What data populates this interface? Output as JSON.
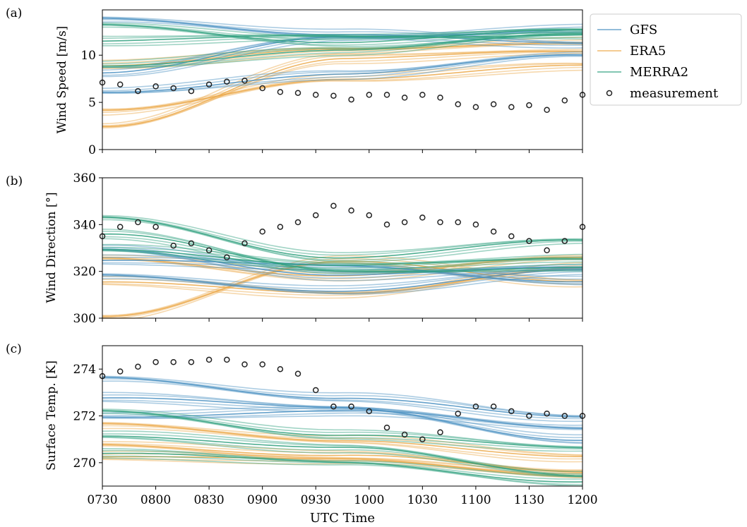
{
  "colors": {
    "GFS": "#4a90c2",
    "ERA5": "#eca94a",
    "MERRA2": "#2fa07e",
    "measurement": "#222222"
  },
  "chart_data": [
    {
      "type": "line",
      "panel_label": "(a)",
      "xlabel": "",
      "ylabel": "Wind Speed [m/s]",
      "xlim": [
        "0730",
        "1200"
      ],
      "ylim": [
        0,
        14.8
      ],
      "yticks": [
        0,
        5,
        10
      ],
      "xticks": [
        "0730",
        "0800",
        "0830",
        "0900",
        "0930",
        "1000",
        "1030",
        "1100",
        "1130",
        "1200"
      ],
      "ensembles": {
        "GFS": [
          {
            "y0": 13.8,
            "y1": 12.3,
            "y2": 11.1
          },
          {
            "y0": 6.2,
            "y1": 7.9,
            "y2": 10.1
          },
          {
            "y0": 8.2,
            "y1": 11.8,
            "y2": 12.8
          }
        ],
        "ERA5": [
          {
            "y0": 4.0,
            "y1": 7.6,
            "y2": 8.8
          },
          {
            "y0": 2.5,
            "y1": 9.6,
            "y2": 10.4
          },
          {
            "y0": 9.0,
            "y1": 10.5,
            "y2": 11.5
          }
        ],
        "MERRA2": [
          {
            "y0": 13.2,
            "y1": 11.4,
            "y2": 12.6
          },
          {
            "y0": 9.0,
            "y1": 10.4,
            "y2": 12.4
          },
          {
            "y0": 11.5,
            "y1": 12.0,
            "y2": 12.2
          }
        ]
      },
      "measurement": {
        "x": [
          "0730",
          "0740",
          "0750",
          "0800",
          "0810",
          "0820",
          "0830",
          "0840",
          "0850",
          "0900",
          "0910",
          "0920",
          "0930",
          "0940",
          "0950",
          "1000",
          "1010",
          "1020",
          "1030",
          "1040",
          "1050",
          "1100",
          "1110",
          "1120",
          "1130",
          "1140",
          "1150",
          "1200"
        ],
        "y": [
          7.1,
          6.9,
          6.2,
          6.7,
          6.5,
          6.2,
          6.9,
          7.2,
          7.3,
          6.5,
          6.1,
          6.0,
          5.8,
          5.7,
          5.3,
          5.8,
          5.8,
          5.5,
          5.8,
          5.5,
          4.8,
          4.5,
          4.8,
          4.5,
          4.7,
          4.2,
          5.2,
          5.8
        ]
      }
    },
    {
      "type": "line",
      "panel_label": "(b)",
      "xlabel": "",
      "ylabel": "Wind Direction [°]",
      "xlim": [
        "0730",
        "1200"
      ],
      "ylim": [
        300,
        360
      ],
      "yticks": [
        300,
        320,
        340,
        360
      ],
      "xticks": [
        "0730",
        "0800",
        "0830",
        "0900",
        "0930",
        "1000",
        "1030",
        "1100",
        "1130",
        "1200"
      ],
      "ensembles": {
        "GFS": [
          {
            "y0": 318,
            "y1": 312,
            "y2": 320
          },
          {
            "y0": 330,
            "y1": 318,
            "y2": 322
          },
          {
            "y0": 325,
            "y1": 322,
            "y2": 316
          }
        ],
        "ERA5": [
          {
            "y0": 300,
            "y1": 325,
            "y2": 315
          },
          {
            "y0": 326,
            "y1": 318,
            "y2": 326
          },
          {
            "y0": 316,
            "y1": 310,
            "y2": 322
          }
        ],
        "MERRA2": [
          {
            "y0": 343,
            "y1": 326,
            "y2": 333
          },
          {
            "y0": 330,
            "y1": 322,
            "y2": 326
          },
          {
            "y0": 336,
            "y1": 320,
            "y2": 322
          }
        ]
      },
      "measurement": {
        "x": [
          "0730",
          "0740",
          "0750",
          "0800",
          "0810",
          "0820",
          "0830",
          "0840",
          "0850",
          "0900",
          "0910",
          "0920",
          "0930",
          "0940",
          "0950",
          "1000",
          "1010",
          "1020",
          "1030",
          "1040",
          "1050",
          "1100",
          "1110",
          "1120",
          "1130",
          "1140",
          "1150",
          "1200"
        ],
        "y": [
          335,
          339,
          341,
          339,
          331,
          332,
          329,
          326,
          332,
          337,
          339,
          341,
          344,
          348,
          346,
          344,
          340,
          341,
          343,
          341,
          341,
          340,
          337,
          335,
          333,
          329,
          333,
          339
        ]
      }
    },
    {
      "type": "line",
      "panel_label": "(c)",
      "xlabel": "UTC Time",
      "ylabel": "Surface Temp. [K]",
      "xlim": [
        "0730",
        "1200"
      ],
      "ylim": [
        269,
        275
      ],
      "yticks": [
        270,
        272,
        274
      ],
      "xticks": [
        "0730",
        "0800",
        "0830",
        "0900",
        "0930",
        "1000",
        "1030",
        "1100",
        "1130",
        "1200"
      ],
      "ensembles": {
        "GFS": [
          {
            "y0": 273.6,
            "y1": 272.8,
            "y2": 271.9
          },
          {
            "y0": 272.0,
            "y1": 272.2,
            "y2": 271.5
          },
          {
            "y0": 272.8,
            "y1": 272.3,
            "y2": 271.0
          }
        ],
        "ERA5": [
          {
            "y0": 271.6,
            "y1": 271.0,
            "y2": 270.2
          },
          {
            "y0": 270.8,
            "y1": 270.3,
            "y2": 269.6
          },
          {
            "y0": 270.3,
            "y1": 270.1,
            "y2": 269.5
          }
        ],
        "MERRA2": [
          {
            "y0": 272.2,
            "y1": 271.2,
            "y2": 270.6
          },
          {
            "y0": 271.2,
            "y1": 270.6,
            "y2": 269.5
          },
          {
            "y0": 270.4,
            "y1": 270.0,
            "y2": 269.2
          }
        ]
      },
      "measurement": {
        "x": [
          "0730",
          "0740",
          "0750",
          "0800",
          "0810",
          "0820",
          "0830",
          "0840",
          "0850",
          "0900",
          "0910",
          "0920",
          "0930",
          "0940",
          "0950",
          "1000",
          "1010",
          "1020",
          "1030",
          "1040",
          "1050",
          "1100",
          "1110",
          "1120",
          "1130",
          "1140",
          "1150",
          "1200"
        ],
        "y": [
          273.7,
          273.9,
          274.1,
          274.3,
          274.3,
          274.3,
          274.4,
          274.4,
          274.2,
          274.2,
          274.0,
          273.8,
          273.1,
          272.4,
          272.4,
          272.2,
          271.5,
          271.2,
          271.0,
          271.3,
          272.1,
          272.4,
          272.4,
          272.2,
          272.0,
          272.1,
          272.0,
          272.0
        ]
      }
    }
  ],
  "legend": {
    "items": [
      {
        "label": "GFS",
        "kind": "line",
        "series": "GFS"
      },
      {
        "label": "ERA5",
        "kind": "line",
        "series": "ERA5"
      },
      {
        "label": "MERRA2",
        "kind": "line",
        "series": "MERRA2"
      },
      {
        "label": "measurement",
        "kind": "marker",
        "series": "measurement"
      }
    ]
  }
}
